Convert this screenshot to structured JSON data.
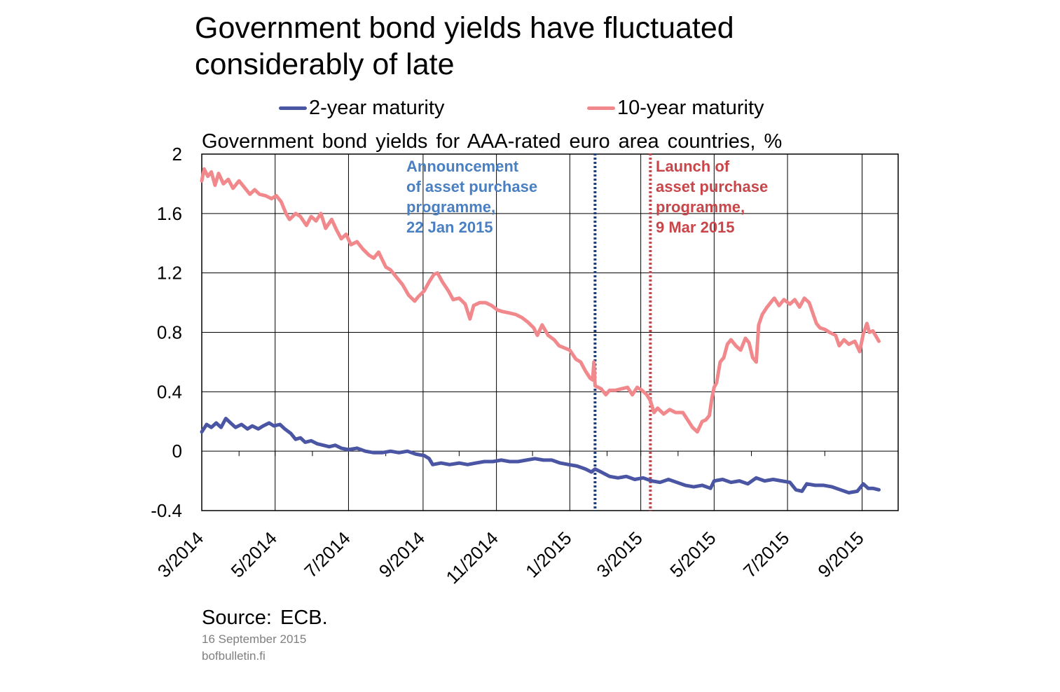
{
  "title": "Government bond yields have fluctuated considerably of late",
  "subtitle": "Government bond yields for AAA-rated euro area countries, %",
  "source": "Source: ECB.",
  "date": "16 September 2015",
  "site": "bofbulletin.fi",
  "colors": {
    "two_year": "#4a55a3",
    "ten_year": "#f0888c",
    "announce": "#4a7fc2",
    "launch": "#c8464a",
    "vline_blue": "#1f3f7a",
    "vline_red": "#c8464a"
  },
  "annotations": {
    "announcement": [
      "Announcement",
      "of asset purchase",
      "programme,",
      "22 Jan 2015"
    ],
    "launch": [
      "Launch of",
      "asset purchase",
      "programme,",
      "9 Mar 2015"
    ]
  },
  "chart_data": {
    "type": "line",
    "title": "Government bond yields have fluctuated considerably of late",
    "subtitle": "Government bond yields for AAA-rated euro area countries, %",
    "ylim": [
      -0.4,
      2
    ],
    "yticks": [
      -0.4,
      0,
      0.4,
      0.8,
      1.2,
      1.6,
      2
    ],
    "ytick_labels": [
      "-0.4",
      "0",
      "0.4",
      "0.8",
      "1.2",
      "1.6",
      "2"
    ],
    "xlim": [
      "2014-03-01",
      "2015-10-01"
    ],
    "xtick_labels": [
      "3/2014",
      "5/2014",
      "7/2014",
      "9/2014",
      "11/2014",
      "1/2015",
      "3/2015",
      "5/2015",
      "7/2015",
      "9/2015"
    ],
    "grid": true,
    "legend": "top",
    "vlines": [
      {
        "date": "2015-01-22",
        "label": "Announcement of asset purchase programme, 22 Jan 2015",
        "style": "dotted"
      },
      {
        "date": "2015-03-09",
        "label": "Launch of asset purchase programme, 9 Mar 2015",
        "style": "dotted"
      }
    ],
    "series": [
      {
        "name": "2-year maturity",
        "points": [
          [
            "2014-03-01",
            0.13
          ],
          [
            "2014-03-05",
            0.18
          ],
          [
            "2014-03-09",
            0.16
          ],
          [
            "2014-03-13",
            0.19
          ],
          [
            "2014-03-17",
            0.16
          ],
          [
            "2014-03-21",
            0.22
          ],
          [
            "2014-03-25",
            0.19
          ],
          [
            "2014-03-29",
            0.16
          ],
          [
            "2014-04-03",
            0.18
          ],
          [
            "2014-04-08",
            0.15
          ],
          [
            "2014-04-12",
            0.17
          ],
          [
            "2014-04-17",
            0.15
          ],
          [
            "2014-04-21",
            0.17
          ],
          [
            "2014-04-26",
            0.19
          ],
          [
            "2014-04-30",
            0.17
          ],
          [
            "2014-05-05",
            0.18
          ],
          [
            "2014-05-09",
            0.15
          ],
          [
            "2014-05-14",
            0.12
          ],
          [
            "2014-05-18",
            0.08
          ],
          [
            "2014-05-22",
            0.09
          ],
          [
            "2014-05-26",
            0.06
          ],
          [
            "2014-05-31",
            0.07
          ],
          [
            "2014-06-05",
            0.05
          ],
          [
            "2014-06-10",
            0.04
          ],
          [
            "2014-06-15",
            0.03
          ],
          [
            "2014-06-20",
            0.04
          ],
          [
            "2014-06-25",
            0.02
          ],
          [
            "2014-07-01",
            0.01
          ],
          [
            "2014-07-08",
            0.02
          ],
          [
            "2014-07-15",
            0.0
          ],
          [
            "2014-07-22",
            -0.01
          ],
          [
            "2014-07-29",
            -0.01
          ],
          [
            "2014-08-05",
            0.0
          ],
          [
            "2014-08-12",
            -0.01
          ],
          [
            "2014-08-19",
            0.0
          ],
          [
            "2014-08-26",
            -0.02
          ],
          [
            "2014-09-02",
            -0.03
          ],
          [
            "2014-09-06",
            -0.05
          ],
          [
            "2014-09-09",
            -0.09
          ],
          [
            "2014-09-16",
            -0.08
          ],
          [
            "2014-09-23",
            -0.09
          ],
          [
            "2014-10-01",
            -0.08
          ],
          [
            "2014-10-08",
            -0.09
          ],
          [
            "2014-10-15",
            -0.08
          ],
          [
            "2014-10-22",
            -0.07
          ],
          [
            "2014-10-29",
            -0.07
          ],
          [
            "2014-11-05",
            -0.06
          ],
          [
            "2014-11-12",
            -0.07
          ],
          [
            "2014-11-19",
            -0.07
          ],
          [
            "2014-11-26",
            -0.06
          ],
          [
            "2014-12-03",
            -0.05
          ],
          [
            "2014-12-10",
            -0.06
          ],
          [
            "2014-12-17",
            -0.06
          ],
          [
            "2014-12-24",
            -0.08
          ],
          [
            "2014-12-31",
            -0.09
          ],
          [
            "2015-01-07",
            -0.1
          ],
          [
            "2015-01-14",
            -0.12
          ],
          [
            "2015-01-19",
            -0.14
          ],
          [
            "2015-01-22",
            -0.12
          ],
          [
            "2015-01-27",
            -0.14
          ],
          [
            "2015-02-03",
            -0.17
          ],
          [
            "2015-02-10",
            -0.18
          ],
          [
            "2015-02-17",
            -0.17
          ],
          [
            "2015-02-24",
            -0.19
          ],
          [
            "2015-03-03",
            -0.18
          ],
          [
            "2015-03-10",
            -0.2
          ],
          [
            "2015-03-17",
            -0.21
          ],
          [
            "2015-03-24",
            -0.19
          ],
          [
            "2015-03-31",
            -0.21
          ],
          [
            "2015-04-07",
            -0.23
          ],
          [
            "2015-04-14",
            -0.24
          ],
          [
            "2015-04-21",
            -0.23
          ],
          [
            "2015-04-28",
            -0.25
          ],
          [
            "2015-05-01",
            -0.2
          ],
          [
            "2015-05-08",
            -0.19
          ],
          [
            "2015-05-15",
            -0.21
          ],
          [
            "2015-05-22",
            -0.2
          ],
          [
            "2015-05-29",
            -0.22
          ],
          [
            "2015-06-05",
            -0.18
          ],
          [
            "2015-06-12",
            -0.2
          ],
          [
            "2015-06-19",
            -0.19
          ],
          [
            "2015-06-26",
            -0.2
          ],
          [
            "2015-07-03",
            -0.21
          ],
          [
            "2015-07-08",
            -0.26
          ],
          [
            "2015-07-13",
            -0.27
          ],
          [
            "2015-07-17",
            -0.22
          ],
          [
            "2015-07-24",
            -0.23
          ],
          [
            "2015-07-31",
            -0.23
          ],
          [
            "2015-08-07",
            -0.24
          ],
          [
            "2015-08-14",
            -0.26
          ],
          [
            "2015-08-21",
            -0.28
          ],
          [
            "2015-08-28",
            -0.27
          ],
          [
            "2015-09-02",
            -0.22
          ],
          [
            "2015-09-06",
            -0.25
          ],
          [
            "2015-09-10",
            -0.25
          ],
          [
            "2015-09-15",
            -0.26
          ]
        ]
      },
      {
        "name": "10-year maturity",
        "points": [
          [
            "2014-03-01",
            1.82
          ],
          [
            "2014-03-03",
            1.9
          ],
          [
            "2014-03-06",
            1.85
          ],
          [
            "2014-03-09",
            1.88
          ],
          [
            "2014-03-12",
            1.79
          ],
          [
            "2014-03-15",
            1.87
          ],
          [
            "2014-03-19",
            1.8
          ],
          [
            "2014-03-23",
            1.83
          ],
          [
            "2014-03-27",
            1.77
          ],
          [
            "2014-04-01",
            1.82
          ],
          [
            "2014-04-05",
            1.78
          ],
          [
            "2014-04-10",
            1.73
          ],
          [
            "2014-04-14",
            1.76
          ],
          [
            "2014-04-18",
            1.73
          ],
          [
            "2014-04-23",
            1.72
          ],
          [
            "2014-04-28",
            1.7
          ],
          [
            "2014-05-02",
            1.72
          ],
          [
            "2014-05-06",
            1.68
          ],
          [
            "2014-05-10",
            1.6
          ],
          [
            "2014-05-13",
            1.56
          ],
          [
            "2014-05-18",
            1.6
          ],
          [
            "2014-05-22",
            1.58
          ],
          [
            "2014-05-27",
            1.52
          ],
          [
            "2014-05-31",
            1.58
          ],
          [
            "2014-06-04",
            1.55
          ],
          [
            "2014-06-08",
            1.6
          ],
          [
            "2014-06-12",
            1.5
          ],
          [
            "2014-06-17",
            1.56
          ],
          [
            "2014-06-21",
            1.49
          ],
          [
            "2014-06-25",
            1.43
          ],
          [
            "2014-06-29",
            1.46
          ],
          [
            "2014-07-03",
            1.39
          ],
          [
            "2014-07-08",
            1.41
          ],
          [
            "2014-07-13",
            1.36
          ],
          [
            "2014-07-18",
            1.32
          ],
          [
            "2014-07-22",
            1.3
          ],
          [
            "2014-07-26",
            1.34
          ],
          [
            "2014-08-01",
            1.24
          ],
          [
            "2014-08-05",
            1.22
          ],
          [
            "2014-08-10",
            1.17
          ],
          [
            "2014-08-15",
            1.12
          ],
          [
            "2014-08-20",
            1.05
          ],
          [
            "2014-08-25",
            1.01
          ],
          [
            "2014-08-28",
            1.04
          ],
          [
            "2014-09-02",
            1.08
          ],
          [
            "2014-09-06",
            1.14
          ],
          [
            "2014-09-10",
            1.19
          ],
          [
            "2014-09-13",
            1.2
          ],
          [
            "2014-09-17",
            1.14
          ],
          [
            "2014-09-22",
            1.08
          ],
          [
            "2014-09-26",
            1.02
          ],
          [
            "2014-10-01",
            1.03
          ],
          [
            "2014-10-06",
            0.99
          ],
          [
            "2014-10-10",
            0.89
          ],
          [
            "2014-10-13",
            0.98
          ],
          [
            "2014-10-18",
            1.0
          ],
          [
            "2014-10-23",
            1.0
          ],
          [
            "2014-10-28",
            0.98
          ],
          [
            "2014-11-02",
            0.95
          ],
          [
            "2014-11-06",
            0.94
          ],
          [
            "2014-11-12",
            0.93
          ],
          [
            "2014-11-17",
            0.92
          ],
          [
            "2014-11-22",
            0.9
          ],
          [
            "2014-11-27",
            0.87
          ],
          [
            "2014-12-02",
            0.83
          ],
          [
            "2014-12-05",
            0.78
          ],
          [
            "2014-12-09",
            0.85
          ],
          [
            "2014-12-14",
            0.78
          ],
          [
            "2014-12-19",
            0.75
          ],
          [
            "2014-12-23",
            0.71
          ],
          [
            "2015-01-01",
            0.68
          ],
          [
            "2015-01-06",
            0.62
          ],
          [
            "2015-01-10",
            0.6
          ],
          [
            "2015-01-14",
            0.54
          ],
          [
            "2015-01-18",
            0.49
          ],
          [
            "2015-01-20",
            0.48
          ],
          [
            "2015-01-21",
            0.6
          ],
          [
            "2015-01-22",
            0.44
          ],
          [
            "2015-01-27",
            0.42
          ],
          [
            "2015-01-31",
            0.38
          ],
          [
            "2015-02-03",
            0.41
          ],
          [
            "2015-02-08",
            0.41
          ],
          [
            "2015-02-13",
            0.42
          ],
          [
            "2015-02-18",
            0.43
          ],
          [
            "2015-02-22",
            0.38
          ],
          [
            "2015-02-26",
            0.43
          ],
          [
            "2015-03-02",
            0.41
          ],
          [
            "2015-03-06",
            0.38
          ],
          [
            "2015-03-09",
            0.34
          ],
          [
            "2015-03-12",
            0.26
          ],
          [
            "2015-03-15",
            0.29
          ],
          [
            "2015-03-20",
            0.25
          ],
          [
            "2015-03-25",
            0.28
          ],
          [
            "2015-03-30",
            0.26
          ],
          [
            "2015-04-05",
            0.26
          ],
          [
            "2015-04-09",
            0.21
          ],
          [
            "2015-04-13",
            0.16
          ],
          [
            "2015-04-17",
            0.13
          ],
          [
            "2015-04-21",
            0.2
          ],
          [
            "2015-04-24",
            0.21
          ],
          [
            "2015-04-27",
            0.24
          ],
          [
            "2015-04-29",
            0.35
          ],
          [
            "2015-05-01",
            0.43
          ],
          [
            "2015-05-03",
            0.46
          ],
          [
            "2015-05-06",
            0.6
          ],
          [
            "2015-05-09",
            0.63
          ],
          [
            "2015-05-12",
            0.72
          ],
          [
            "2015-05-15",
            0.75
          ],
          [
            "2015-05-19",
            0.71
          ],
          [
            "2015-05-23",
            0.68
          ],
          [
            "2015-05-27",
            0.76
          ],
          [
            "2015-05-30",
            0.73
          ],
          [
            "2015-06-02",
            0.63
          ],
          [
            "2015-06-05",
            0.6
          ],
          [
            "2015-06-07",
            0.85
          ],
          [
            "2015-06-10",
            0.92
          ],
          [
            "2015-06-14",
            0.97
          ],
          [
            "2015-06-17",
            1.0
          ],
          [
            "2015-06-20",
            1.03
          ],
          [
            "2015-06-24",
            0.98
          ],
          [
            "2015-06-28",
            1.02
          ],
          [
            "2015-07-03",
            0.99
          ],
          [
            "2015-07-07",
            1.02
          ],
          [
            "2015-07-11",
            0.97
          ],
          [
            "2015-07-15",
            1.03
          ],
          [
            "2015-07-19",
            1.0
          ],
          [
            "2015-07-22",
            0.93
          ],
          [
            "2015-07-25",
            0.86
          ],
          [
            "2015-07-28",
            0.83
          ],
          [
            "2015-08-01",
            0.82
          ],
          [
            "2015-08-05",
            0.8
          ],
          [
            "2015-08-10",
            0.78
          ],
          [
            "2015-08-13",
            0.71
          ],
          [
            "2015-08-17",
            0.75
          ],
          [
            "2015-08-21",
            0.72
          ],
          [
            "2015-08-26",
            0.74
          ],
          [
            "2015-08-30",
            0.67
          ],
          [
            "2015-09-02",
            0.79
          ],
          [
            "2015-09-05",
            0.86
          ],
          [
            "2015-09-07",
            0.8
          ],
          [
            "2015-09-10",
            0.81
          ],
          [
            "2015-09-15",
            0.74
          ]
        ]
      }
    ]
  }
}
